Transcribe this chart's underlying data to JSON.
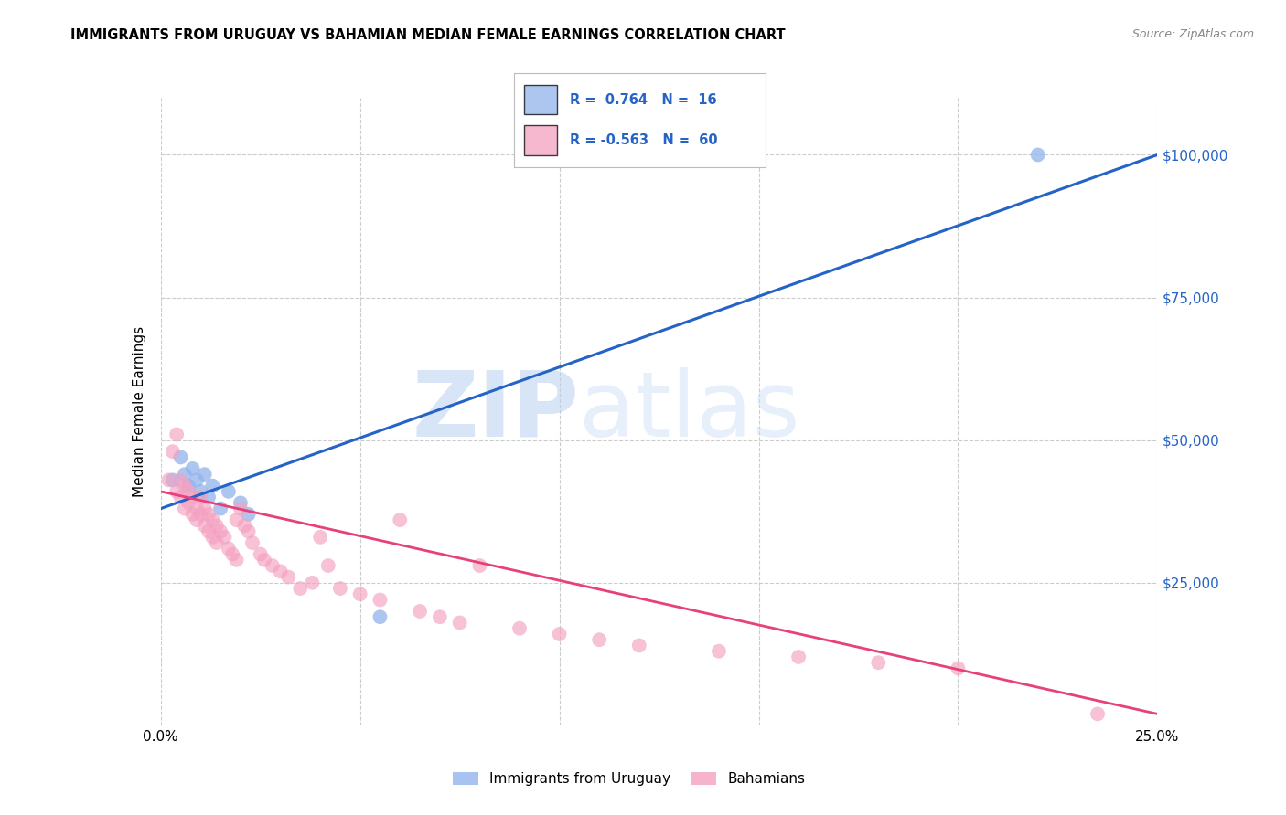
{
  "title": "IMMIGRANTS FROM URUGUAY VS BAHAMIAN MEDIAN FEMALE EARNINGS CORRELATION CHART",
  "source": "Source: ZipAtlas.com",
  "ylabel": "Median Female Earnings",
  "xlim": [
    0.0,
    0.25
  ],
  "ylim": [
    0,
    110000
  ],
  "ytick_positions": [
    25000,
    50000,
    75000,
    100000
  ],
  "ytick_labels": [
    "$25,000",
    "$50,000",
    "$75,000",
    "$100,000"
  ],
  "legend_r_blue": "0.764",
  "legend_n_blue": "16",
  "legend_r_pink": "-0.563",
  "legend_n_pink": "60",
  "legend_label_blue": "Immigrants from Uruguay",
  "legend_label_pink": "Bahamians",
  "blue_color": "#92B4EC",
  "pink_color": "#F4A0C0",
  "blue_line_color": "#2563C7",
  "pink_line_color": "#E8407A",
  "background_color": "#ffffff",
  "blue_scatter_x": [
    0.003,
    0.005,
    0.006,
    0.007,
    0.008,
    0.009,
    0.01,
    0.011,
    0.012,
    0.013,
    0.015,
    0.017,
    0.02,
    0.022,
    0.055,
    0.22
  ],
  "blue_scatter_y": [
    43000,
    47000,
    44000,
    42000,
    45000,
    43000,
    41000,
    44000,
    40000,
    42000,
    38000,
    41000,
    39000,
    37000,
    19000,
    100000
  ],
  "pink_scatter_x": [
    0.002,
    0.003,
    0.004,
    0.004,
    0.005,
    0.005,
    0.006,
    0.006,
    0.007,
    0.007,
    0.008,
    0.008,
    0.009,
    0.009,
    0.01,
    0.01,
    0.011,
    0.011,
    0.012,
    0.012,
    0.013,
    0.013,
    0.014,
    0.014,
    0.015,
    0.016,
    0.017,
    0.018,
    0.019,
    0.019,
    0.02,
    0.021,
    0.022,
    0.023,
    0.025,
    0.026,
    0.028,
    0.03,
    0.032,
    0.035,
    0.038,
    0.04,
    0.042,
    0.045,
    0.05,
    0.055,
    0.06,
    0.065,
    0.07,
    0.075,
    0.08,
    0.09,
    0.1,
    0.11,
    0.12,
    0.14,
    0.16,
    0.18,
    0.2,
    0.235
  ],
  "pink_scatter_y": [
    43000,
    48000,
    51000,
    41000,
    43000,
    40000,
    42000,
    38000,
    41000,
    39000,
    37000,
    40000,
    38000,
    36000,
    40000,
    37000,
    38000,
    35000,
    37000,
    34000,
    36000,
    33000,
    35000,
    32000,
    34000,
    33000,
    31000,
    30000,
    29000,
    36000,
    38000,
    35000,
    34000,
    32000,
    30000,
    29000,
    28000,
    27000,
    26000,
    24000,
    25000,
    33000,
    28000,
    24000,
    23000,
    22000,
    36000,
    20000,
    19000,
    18000,
    28000,
    17000,
    16000,
    15000,
    14000,
    13000,
    12000,
    11000,
    10000,
    2000
  ],
  "blue_line_x0": 0.0,
  "blue_line_y0": 38000,
  "blue_line_x1": 0.25,
  "blue_line_y1": 100000,
  "pink_line_x0": 0.0,
  "pink_line_y0": 41000,
  "pink_line_x1": 0.25,
  "pink_line_y1": 2000
}
